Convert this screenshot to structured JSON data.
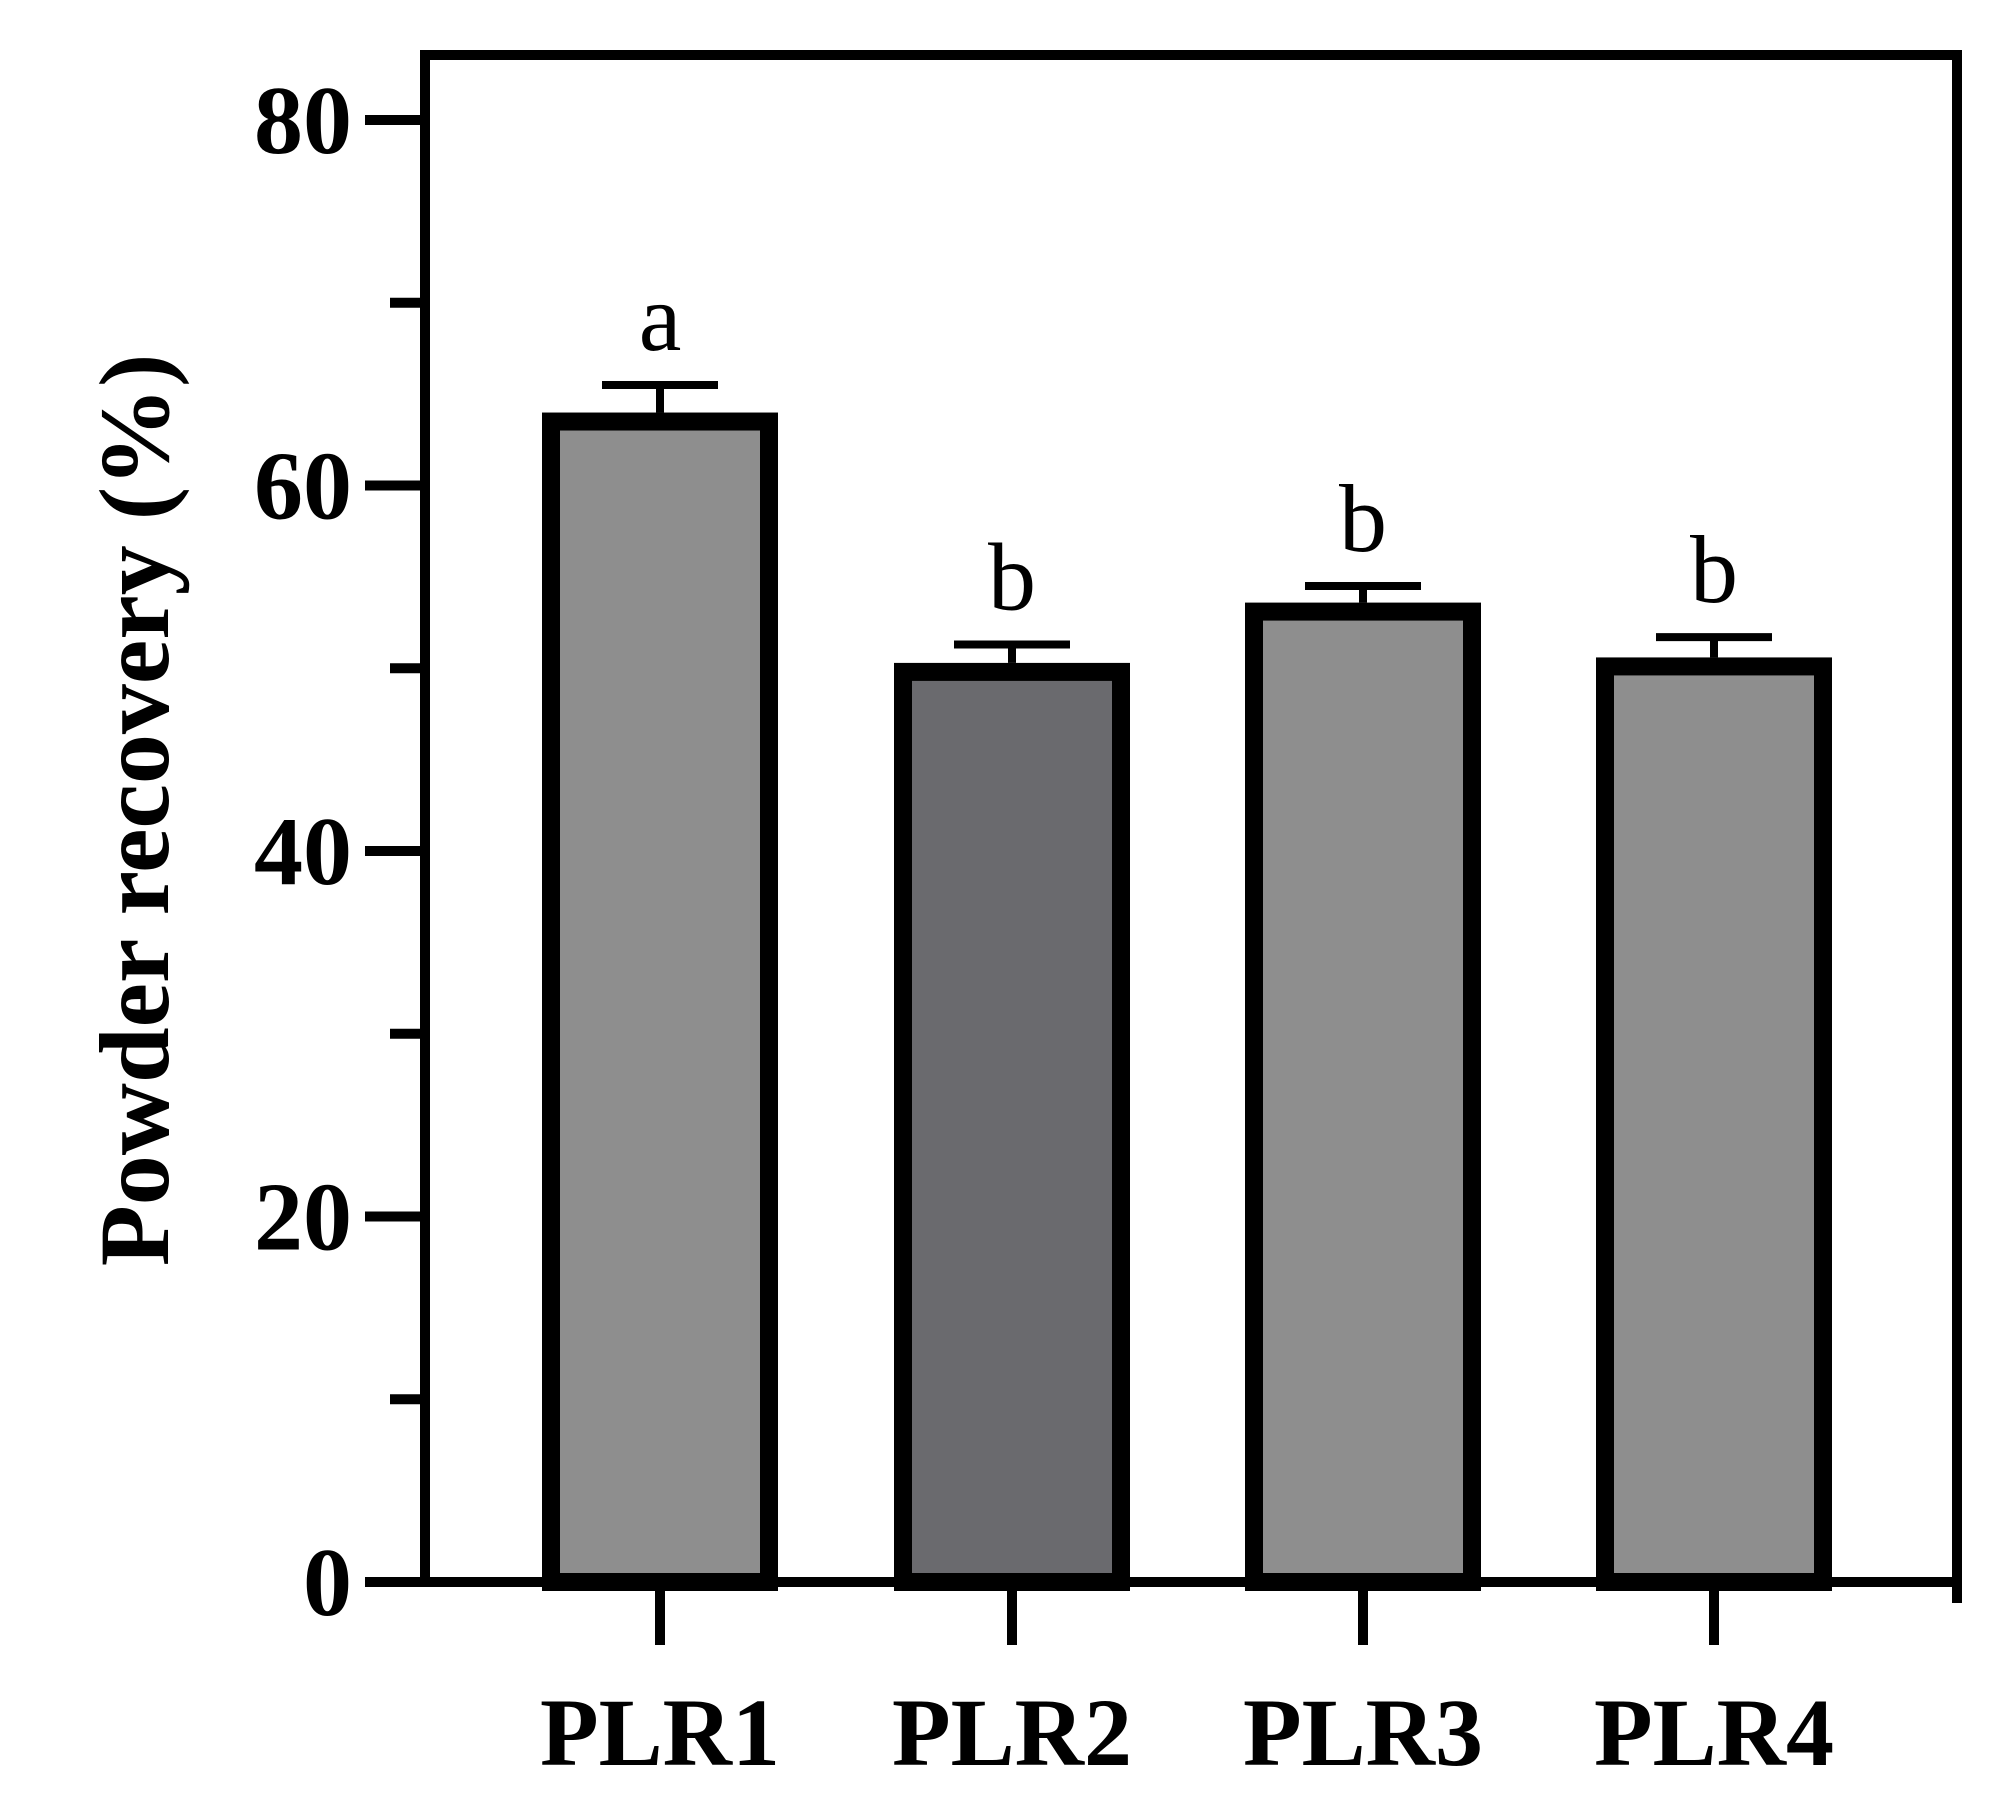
{
  "chart_data": {
    "type": "bar",
    "ylabel": "Powder recovery (%)",
    "ylim": [
      0,
      80
    ],
    "y_major_ticks": [
      0,
      20,
      40,
      60,
      80
    ],
    "y_minor_ticks": [
      10,
      30,
      50,
      70
    ],
    "grid": false,
    "categories": [
      "PLR1",
      "PLR2",
      "PLR3",
      "PLR4"
    ],
    "values": [
      63.5,
      49.8,
      53.1,
      50.1
    ],
    "errors": [
      2.0,
      1.5,
      1.4,
      1.6
    ],
    "significance": [
      "a",
      "b",
      "b",
      "b"
    ],
    "bar_colors": [
      "#8e8e8e",
      "#6a6a6e",
      "#8e8e8e",
      "#8e8e8e"
    ],
    "edge_color": "#000000"
  }
}
